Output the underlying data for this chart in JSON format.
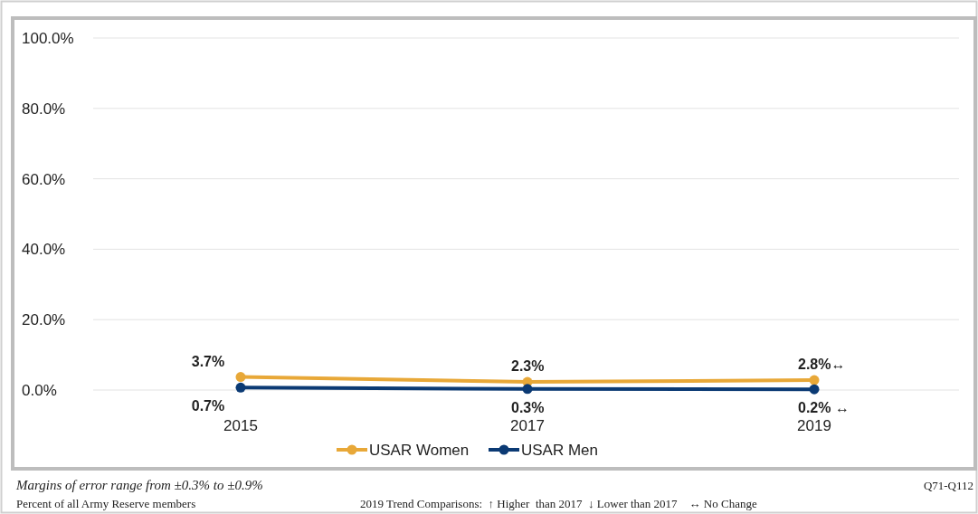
{
  "chart_data": {
    "type": "line",
    "categories": [
      "2015",
      "2017",
      "2019"
    ],
    "series": [
      {
        "name": "USAR Women",
        "color": "#e8a838",
        "values": [
          3.7,
          2.3,
          2.8
        ],
        "value_labels": [
          "3.7%",
          "2.3%",
          "2.8%↔"
        ]
      },
      {
        "name": "USAR Men",
        "color": "#0b3a74",
        "values": [
          0.7,
          0.3,
          0.2
        ],
        "value_labels": [
          "0.7%",
          "0.3%",
          "0.2% ↔"
        ]
      }
    ],
    "ylim": [
      0,
      100
    ],
    "yticks": [
      {
        "value": 0,
        "label": "0.0%"
      },
      {
        "value": 20,
        "label": "20.0%"
      },
      {
        "value": 40,
        "label": "40.0%"
      },
      {
        "value": 60,
        "label": "60.0%"
      },
      {
        "value": 80,
        "label": "80.0%"
      },
      {
        "value": 100,
        "label": "100.0%"
      }
    ],
    "grid": "y",
    "legend": "bottom",
    "marker": "circle",
    "annotations": [
      "Margins of error range from ±0.3% to ±0.9%",
      "Q71-Q112",
      "Percent of all Army Reserve members",
      "2019 Trend Comparisons:  ↑ Higher  than 2017  ↓ Lower than 2017    ↔ No Change"
    ]
  }
}
